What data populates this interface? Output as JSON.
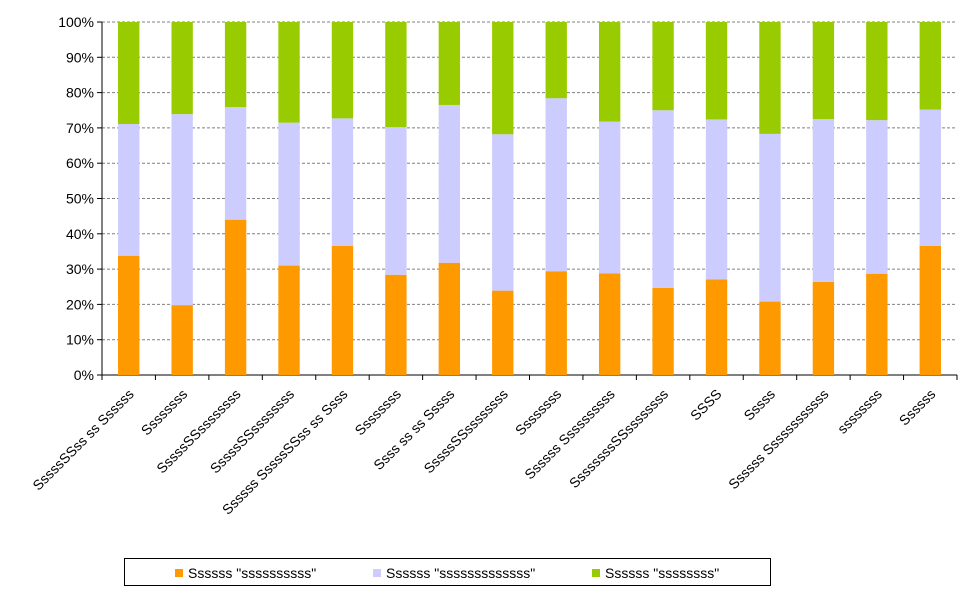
{
  "chart_data": {
    "type": "bar",
    "stacked": true,
    "percent": true,
    "title": "",
    "xlabel": "",
    "ylabel": "",
    "ylim": [
      0,
      100
    ],
    "yticks": [
      "0%",
      "10%",
      "20%",
      "30%",
      "40%",
      "50%",
      "60%",
      "70%",
      "80%",
      "90%",
      "100%"
    ],
    "grid": true,
    "legend_position": "bottom",
    "categories": [
      "SssssSSss ss Ssssss",
      "Ssssssss",
      "SssssSSssssssss",
      "SssssSSssssssss",
      "Ssssss SssssSSss ss Ssss",
      "Ssssssss",
      "Ssss ss ss Sssss",
      "SssssSSssssssss",
      "Ssssssss",
      "Ssssss Ssssssssss",
      "SsssssssSSssssssss",
      "SSSS",
      "Sssss",
      "Ssssss Ssssssssssss",
      "ssssssss",
      "Ssssss"
    ],
    "series": [
      {
        "name": "Ssssss \"ssssssssss\"",
        "color": "#ff9900",
        "values": [
          33.8,
          19.8,
          44.0,
          31.0,
          36.6,
          28.4,
          31.8,
          23.9,
          29.4,
          28.8,
          24.7,
          27.1,
          20.8,
          26.4,
          28.7,
          36.6
        ]
      },
      {
        "name": "Ssssss \"sssssssssssss\"",
        "color": "#ccccff",
        "values": [
          37.3,
          54.1,
          31.9,
          40.5,
          36.1,
          41.8,
          44.7,
          44.3,
          49.0,
          43.0,
          50.3,
          45.3,
          47.5,
          46.1,
          43.5,
          38.6
        ]
      },
      {
        "name": "Ssssss \"ssssssss\"",
        "color": "#99cc00",
        "values": [
          28.9,
          26.1,
          24.1,
          28.5,
          27.3,
          29.8,
          23.5,
          31.8,
          21.6,
          28.2,
          25.0,
          27.6,
          31.7,
          27.5,
          27.8,
          24.8
        ]
      }
    ]
  }
}
